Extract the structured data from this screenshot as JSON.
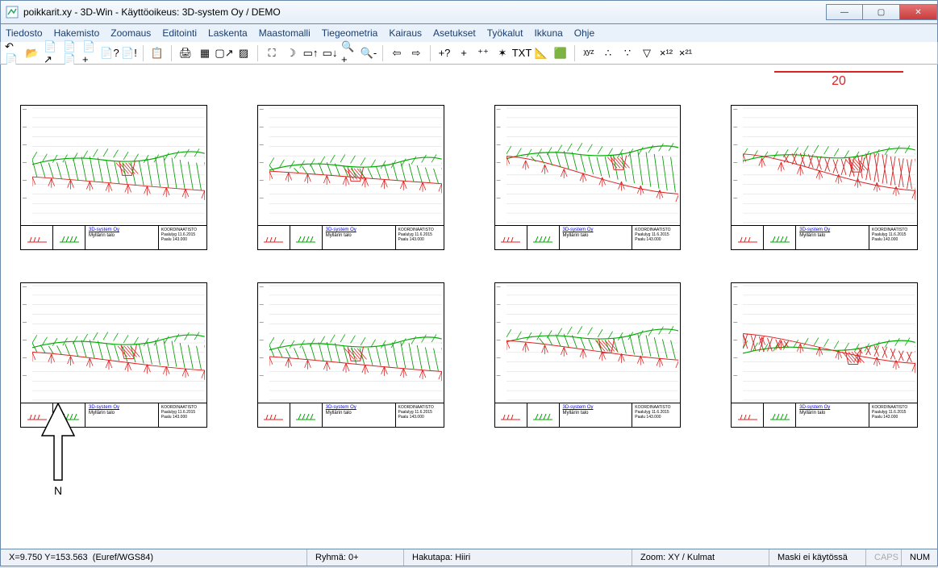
{
  "window": {
    "title": "poikkarit.xy - 3D-Win - Käyttöoikeus: 3D-system Oy / DEMO"
  },
  "menu": {
    "items": [
      "Tiedosto",
      "Hakemisto",
      "Zoomaus",
      "Editointi",
      "Laskenta",
      "Maastomalli",
      "Tiegeometria",
      "Kairaus",
      "Asetukset",
      "Työkalut",
      "Ikkuna",
      "Ohje"
    ]
  },
  "toolbar": {
    "groups": [
      [
        "file-new",
        "file-open",
        "file-arrow",
        "doc-doc",
        "doc-dup",
        "doc-help",
        "doc-exc"
      ],
      [
        "clipboard"
      ],
      [
        "print",
        "grid-150",
        "page-tool",
        "hatch-tool"
      ],
      [
        "extent",
        "zoom-magic",
        "box-up",
        "box-down",
        "zoom-in",
        "zoom-out"
      ],
      [
        "nav-prev",
        "nav-next"
      ],
      [
        "pt-add-q",
        "pt-add",
        "pt-multi",
        "axes",
        "txt",
        "measure1",
        "measure2"
      ],
      [
        "xyz-tool",
        "pts-a",
        "pts-b",
        "pts-c",
        "x12",
        "x21"
      ]
    ],
    "icon_render": {
      "file-new": "↶📄",
      "file-open": "📂",
      "file-arrow": "📄↗",
      "doc-doc": "📄📄",
      "doc-dup": "📄+",
      "doc-help": "📄?",
      "doc-exc": "📄!",
      "clipboard": "📋",
      "print": "🖨",
      "grid-150": "▦",
      "page-tool": "▢↗",
      "hatch-tool": "▨",
      "extent": "⛶",
      "zoom-magic": "☽",
      "box-up": "▭↑",
      "box-down": "▭↓",
      "zoom-in": "🔍+",
      "zoom-out": "🔍-",
      "nav-prev": "⇦",
      "nav-next": "⇨",
      "pt-add-q": "+?",
      "pt-add": "+",
      "pt-multi": "⁺⁺",
      "axes": "✶",
      "txt": "TXT",
      "measure1": "📐",
      "measure2": "🟩",
      "xyz-tool": "ᵡʸᶻ",
      "pts-a": "∴",
      "pts-b": "∵",
      "pts-c": "▽",
      "x12": "×¹²",
      "x21": "×²¹"
    }
  },
  "canvas": {
    "scale_label": "20",
    "north_label": "N",
    "colors": {
      "green": "#0a9c0a",
      "red": "#d22222",
      "grid": "#d8d8d8",
      "frame": "#000000",
      "bg": "#ffffff",
      "link": "#0000dd"
    },
    "panel_legend": {
      "company": "3D-system Oy",
      "project": "Myllärin talo",
      "right1": "KOORDINAATISTO",
      "right2": "Paalulyg 11.6.2015",
      "right3": "Paalu   143.000"
    },
    "panels": [
      {
        "variant": "green_fill",
        "green_y": 0.45,
        "red_slope": [
          0.6,
          0.72
        ],
        "ditch_x": 0.55,
        "hatch_color": "green"
      },
      {
        "variant": "green_sparse",
        "green_y": 0.5,
        "red_slope": [
          0.55,
          0.66
        ],
        "ditch_x": 0.5,
        "hatch_color": "green"
      },
      {
        "variant": "mix_down",
        "green_y": 0.4,
        "red_slope": [
          0.42,
          0.75
        ],
        "ditch_x": 0.65,
        "hatch_color": "green"
      },
      {
        "variant": "red_fill",
        "green_y": 0.42,
        "red_slope": [
          0.4,
          0.72
        ],
        "ditch_x": 0.66,
        "hatch_color": "red"
      },
      {
        "variant": "green_fill2",
        "green_y": 0.5,
        "red_slope": [
          0.58,
          0.74
        ],
        "ditch_x": 0.56,
        "hatch_color": "green"
      },
      {
        "variant": "green_cross",
        "green_y": 0.52,
        "red_slope": [
          0.62,
          0.75
        ],
        "ditch_x": 0.5,
        "hatch_color": "green"
      },
      {
        "variant": "mix_flat",
        "green_y": 0.45,
        "red_slope": [
          0.48,
          0.65
        ],
        "ditch_x": 0.58,
        "hatch_color": "green"
      },
      {
        "variant": "red_large",
        "green_y": 0.55,
        "red_slope": [
          0.42,
          0.68
        ],
        "ditch_x": 0.64,
        "hatch_color": "red"
      }
    ],
    "plot_style": {
      "n_hgrid": 12,
      "tick_marks_green": "///",
      "tick_marks_red": "YYY"
    }
  },
  "statusbar": {
    "coords": "X=9.750  Y=153.563",
    "crs": "(Euref/WGS84)",
    "group": "Ryhmä: 0+",
    "pick": "Hakutapa: Hiiri",
    "zoom": "Zoom: XY  /  Kulmat",
    "mask": "Maski ei käytössä",
    "caps": "CAPS",
    "num": "NUM"
  }
}
